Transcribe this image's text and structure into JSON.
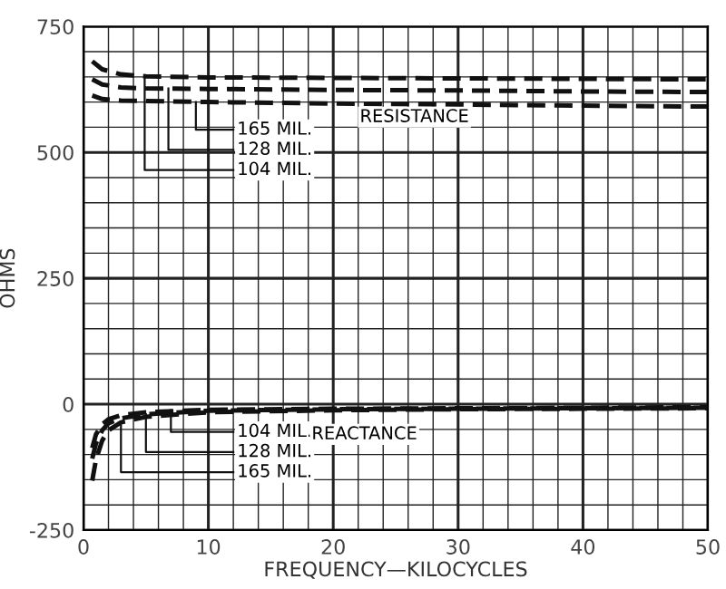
{
  "chart_data": {
    "type": "line",
    "xlabel": "FREQUENCY—KILOCYCLES",
    "ylabel": "OHMS",
    "xlim": [
      0,
      50
    ],
    "ylim": [
      -250,
      750
    ],
    "xticks": [
      0,
      {
        "value": 2,
        "label": null
      },
      {
        "value": 4,
        "label": null
      },
      {
        "value": 6,
        "label": null
      },
      {
        "value": 8,
        "label": null
      },
      10,
      {
        "value": 12,
        "label": null
      },
      {
        "value": 14,
        "label": null
      },
      {
        "value": 16,
        "label": null
      },
      {
        "value": 18,
        "label": null
      },
      20,
      {
        "value": 22,
        "label": null
      },
      {
        "value": 24,
        "label": null
      },
      {
        "value": 26,
        "label": null
      },
      {
        "value": 28,
        "label": null
      },
      30,
      {
        "value": 32,
        "label": null
      },
      {
        "value": 34,
        "label": null
      },
      {
        "value": 36,
        "label": null
      },
      {
        "value": 38,
        "label": null
      },
      40,
      {
        "value": 42,
        "label": null
      },
      {
        "value": 44,
        "label": null
      },
      {
        "value": 46,
        "label": null
      },
      {
        "value": 48,
        "label": null
      },
      50
    ],
    "yticks": [
      -250,
      {
        "value": -200,
        "label": null
      },
      {
        "value": -150,
        "label": null
      },
      {
        "value": -100,
        "label": null
      },
      {
        "value": -50,
        "label": null
      },
      0,
      {
        "value": 50,
        "label": null
      },
      {
        "value": 100,
        "label": null
      },
      {
        "value": 150,
        "label": null
      },
      {
        "value": 200,
        "label": null
      },
      250,
      {
        "value": 300,
        "label": null
      },
      {
        "value": 350,
        "label": null
      },
      {
        "value": 400,
        "label": null
      },
      {
        "value": 450,
        "label": null
      },
      500,
      {
        "value": 550,
        "label": null
      },
      {
        "value": 600,
        "label": null
      },
      {
        "value": 650,
        "label": null
      },
      {
        "value": 700,
        "label": null
      },
      750
    ],
    "grid": true,
    "line_style": "dashed",
    "marker": "none",
    "legend": false,
    "series": [
      {
        "color": "#111111",
        "x": [
          0.7,
          1.5,
          3,
          5,
          10,
          20,
          30,
          40,
          50
        ],
        "values": [
          681,
          665,
          655,
          651,
          649,
          648,
          647,
          646,
          645
        ]
      },
      {
        "color": "#111111",
        "x": [
          0.7,
          1.5,
          3,
          5,
          10,
          20,
          30,
          40,
          50
        ],
        "values": [
          645,
          635,
          629,
          627,
          626,
          624,
          623,
          621,
          620
        ]
      },
      {
        "color": "#111111",
        "x": [
          0.7,
          1.5,
          3,
          5,
          10,
          20,
          30,
          40,
          50
        ],
        "values": [
          613,
          606,
          603,
          602,
          600,
          597,
          595,
          593,
          591
        ]
      },
      {
        "color": "#111111",
        "x": [
          0.7,
          1,
          1.5,
          2,
          3,
          5,
          10,
          20,
          30,
          40,
          50
        ],
        "values": [
          -87,
          -60,
          -40,
          -30,
          -22,
          -16,
          -11,
          -9,
          -8,
          -7,
          -6
        ]
      },
      {
        "color": "#111111",
        "x": [
          0.7,
          1,
          1.5,
          2,
          3,
          5,
          10,
          20,
          30,
          40,
          50
        ],
        "values": [
          -108,
          -78,
          -52,
          -38,
          -28,
          -20,
          -13,
          -10,
          -9,
          -8,
          -7
        ]
      },
      {
        "color": "#111111",
        "x": [
          0.7,
          1,
          1.5,
          2,
          3,
          5,
          10,
          20,
          30,
          40,
          50
        ],
        "values": [
          -152,
          -110,
          -72,
          -52,
          -36,
          -25,
          -16,
          -12,
          -10,
          -9,
          -8
        ]
      }
    ],
    "annotations": [
      {
        "text": "165 MIL.",
        "x": 9,
        "y": 600
      },
      {
        "text": "128 MIL.",
        "x": 6.8,
        "y": 627
      },
      {
        "text": "104 MIL.",
        "x": 4.9,
        "y": 651
      },
      "RESISTANCE",
      {
        "text": "104 MIL.",
        "x": 7,
        "y": -12
      },
      {
        "text": "128 MIL.",
        "x": 5,
        "y": -20
      },
      {
        "text": "165 MIL.",
        "x": 3,
        "y": -36
      },
      "REACTANCE"
    ]
  }
}
